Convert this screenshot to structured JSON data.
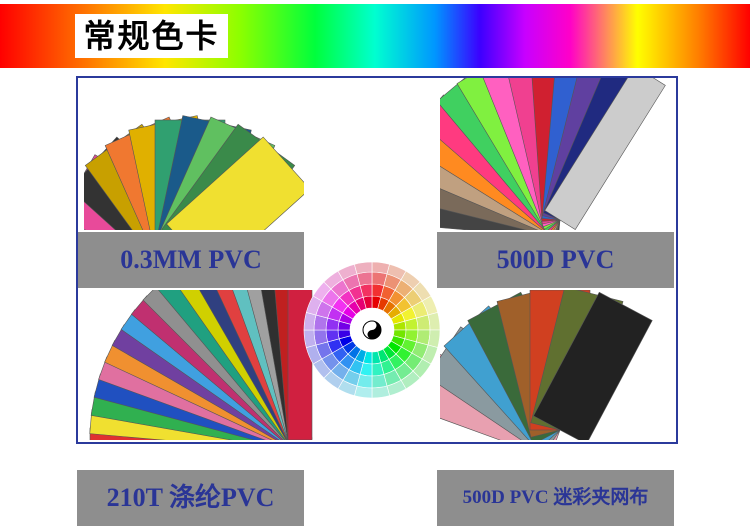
{
  "header": {
    "title": "常规色卡"
  },
  "swatches": [
    {
      "label": "0.3MM PVC"
    },
    {
      "label": "500D PVC"
    },
    {
      "label": "210T 涤纶PVC"
    },
    {
      "label": "500D PVC 迷彩夹网布"
    }
  ]
}
